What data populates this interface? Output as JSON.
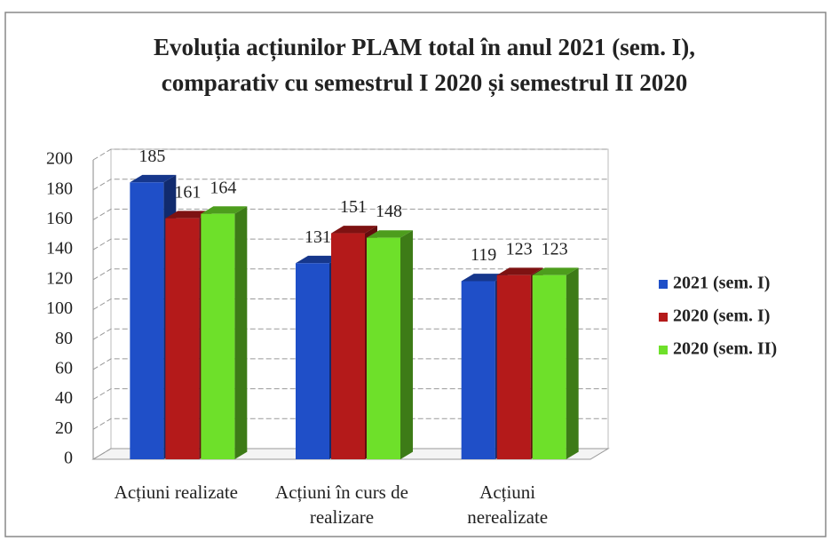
{
  "chart_data": {
    "type": "bar3d",
    "title": [
      "Evoluția acțiunilor PLAM total în anul 2021 (sem. I),",
      "comparativ cu semestrul I 2020 și semestrul II 2020"
    ],
    "categories": [
      "Acțiuni realizate",
      "Acțiuni în curs de realizare",
      "Acțiuni nerealizate"
    ],
    "series": [
      {
        "name": "2021 (sem. I)",
        "color": "#1f4fc8",
        "values": [
          185,
          131,
          119
        ]
      },
      {
        "name": "2020 (sem. I)",
        "color": "#b41a1a",
        "values": [
          161,
          151,
          123
        ]
      },
      {
        "name": "2020 (sem. II)",
        "color": "#6ee02a",
        "values": [
          164,
          148,
          123
        ]
      }
    ],
    "ylim": [
      0,
      200
    ],
    "yticks": [
      0,
      20,
      40,
      60,
      80,
      100,
      120,
      140,
      160,
      180,
      200
    ],
    "grid": true,
    "legend": "right"
  }
}
